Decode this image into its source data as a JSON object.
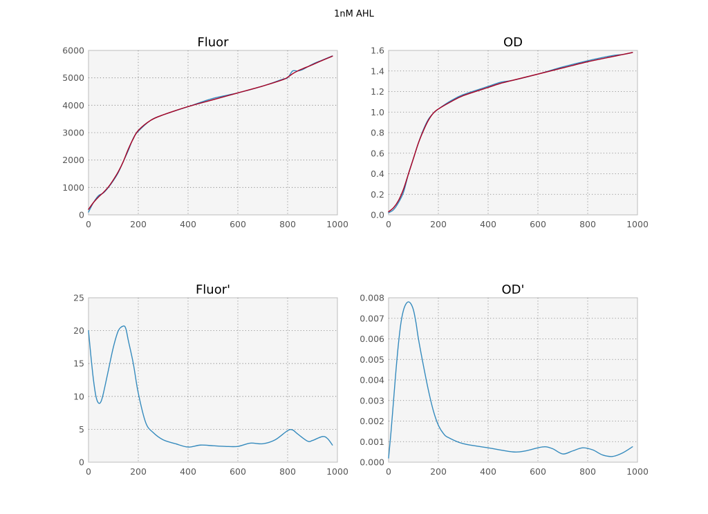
{
  "figure": {
    "suptitle": "1nM AHL"
  },
  "chart_data": [
    {
      "type": "line",
      "title": "Fluor",
      "xlabel": "",
      "ylabel": "",
      "xlim": [
        0,
        1000
      ],
      "ylim": [
        0,
        6000
      ],
      "xticks": [
        0,
        200,
        400,
        600,
        800,
        1000
      ],
      "yticks": [
        0,
        1000,
        2000,
        3000,
        4000,
        5000,
        6000
      ],
      "grid": true,
      "series": [
        {
          "color": "#348abd",
          "x": [
            0,
            20,
            40,
            60,
            80,
            100,
            120,
            140,
            160,
            180,
            200,
            250,
            300,
            400,
            500,
            600,
            700,
            780,
            800,
            820,
            840,
            860,
            900,
            940,
            980
          ],
          "y": [
            100,
            450,
            700,
            800,
            1000,
            1250,
            1550,
            1950,
            2350,
            2800,
            3050,
            3450,
            3650,
            3950,
            4250,
            4450,
            4700,
            4950,
            5000,
            5250,
            5250,
            5300,
            5500,
            5650,
            5800
          ]
        },
        {
          "color": "#a60628",
          "x": [
            0,
            20,
            40,
            60,
            80,
            100,
            120,
            140,
            160,
            180,
            200,
            250,
            300,
            400,
            500,
            600,
            700,
            780,
            800,
            820,
            840,
            860,
            900,
            940,
            980
          ],
          "y": [
            200,
            450,
            650,
            820,
            1020,
            1280,
            1580,
            1950,
            2400,
            2780,
            3080,
            3450,
            3650,
            3950,
            4200,
            4450,
            4700,
            4930,
            5020,
            5150,
            5250,
            5330,
            5480,
            5640,
            5790
          ]
        }
      ]
    },
    {
      "type": "line",
      "title": "OD",
      "xlabel": "",
      "ylabel": "",
      "xlim": [
        0,
        1000
      ],
      "ylim": [
        0,
        1.6
      ],
      "xticks": [
        0,
        200,
        400,
        600,
        800,
        1000
      ],
      "yticks": [
        0.0,
        0.2,
        0.4,
        0.6,
        0.8,
        1.0,
        1.2,
        1.4,
        1.6
      ],
      "ytick_decimals": 1,
      "grid": true,
      "series": [
        {
          "color": "#348abd",
          "x": [
            0,
            20,
            40,
            60,
            80,
            100,
            120,
            140,
            160,
            180,
            200,
            250,
            300,
            400,
            450,
            500,
            600,
            700,
            800,
            900,
            940,
            980
          ],
          "y": [
            0.02,
            0.05,
            0.12,
            0.22,
            0.4,
            0.55,
            0.7,
            0.83,
            0.93,
            0.99,
            1.03,
            1.11,
            1.17,
            1.25,
            1.29,
            1.31,
            1.37,
            1.44,
            1.5,
            1.55,
            1.56,
            1.58
          ]
        },
        {
          "color": "#a60628",
          "x": [
            0,
            20,
            40,
            60,
            80,
            100,
            120,
            140,
            160,
            180,
            200,
            250,
            300,
            400,
            450,
            500,
            600,
            700,
            800,
            900,
            940,
            980
          ],
          "y": [
            0.03,
            0.07,
            0.14,
            0.25,
            0.4,
            0.55,
            0.7,
            0.82,
            0.92,
            0.99,
            1.03,
            1.1,
            1.16,
            1.24,
            1.28,
            1.31,
            1.37,
            1.43,
            1.49,
            1.54,
            1.56,
            1.58
          ]
        }
      ]
    },
    {
      "type": "line",
      "title": "Fluor'",
      "xlabel": "",
      "ylabel": "",
      "xlim": [
        0,
        1000
      ],
      "ylim": [
        0,
        25
      ],
      "xticks": [
        0,
        200,
        400,
        600,
        800,
        1000
      ],
      "yticks": [
        0,
        5,
        10,
        15,
        20,
        25
      ],
      "grid": true,
      "series": [
        {
          "color": "#348abd",
          "x": [
            0,
            10,
            20,
            30,
            40,
            50,
            60,
            80,
            100,
            120,
            140,
            150,
            160,
            180,
            200,
            230,
            260,
            300,
            350,
            400,
            450,
            500,
            550,
            600,
            650,
            700,
            750,
            800,
            820,
            840,
            880,
            900,
            940,
            960,
            980
          ],
          "y": [
            20,
            16,
            12.5,
            10,
            9,
            9.2,
            10.5,
            14,
            17.5,
            20,
            20.7,
            20.3,
            18.5,
            15,
            10.5,
            6,
            4.5,
            3.4,
            2.8,
            2.3,
            2.6,
            2.5,
            2.4,
            2.4,
            2.9,
            2.8,
            3.4,
            4.8,
            4.9,
            4.3,
            3.2,
            3.3,
            3.9,
            3.6,
            2.6
          ]
        }
      ]
    },
    {
      "type": "line",
      "title": "OD'",
      "xlabel": "",
      "ylabel": "",
      "xlim": [
        0,
        1000
      ],
      "ylim": [
        0,
        0.008
      ],
      "xticks": [
        0,
        200,
        400,
        600,
        800,
        1000
      ],
      "yticks": [
        0.0,
        0.001,
        0.002,
        0.003,
        0.004,
        0.005,
        0.006,
        0.007,
        0.008
      ],
      "ytick_decimals": 3,
      "grid": true,
      "series": [
        {
          "color": "#348abd",
          "x": [
            0,
            10,
            20,
            30,
            40,
            50,
            60,
            70,
            80,
            90,
            100,
            110,
            120,
            140,
            160,
            180,
            200,
            220,
            240,
            300,
            400,
            500,
            550,
            600,
            630,
            660,
            700,
            740,
            780,
            820,
            860,
            900,
            940,
            980
          ],
          "y": [
            0.0002,
            0.0015,
            0.003,
            0.0045,
            0.0058,
            0.0068,
            0.0074,
            0.0077,
            0.0078,
            0.0077,
            0.0074,
            0.0068,
            0.006,
            0.0047,
            0.0035,
            0.0025,
            0.0018,
            0.0014,
            0.0012,
            0.0009,
            0.0007,
            0.0005,
            0.00055,
            0.0007,
            0.00075,
            0.00065,
            0.0004,
            0.00055,
            0.0007,
            0.0006,
            0.00035,
            0.00028,
            0.00045,
            0.00075
          ]
        }
      ]
    }
  ]
}
